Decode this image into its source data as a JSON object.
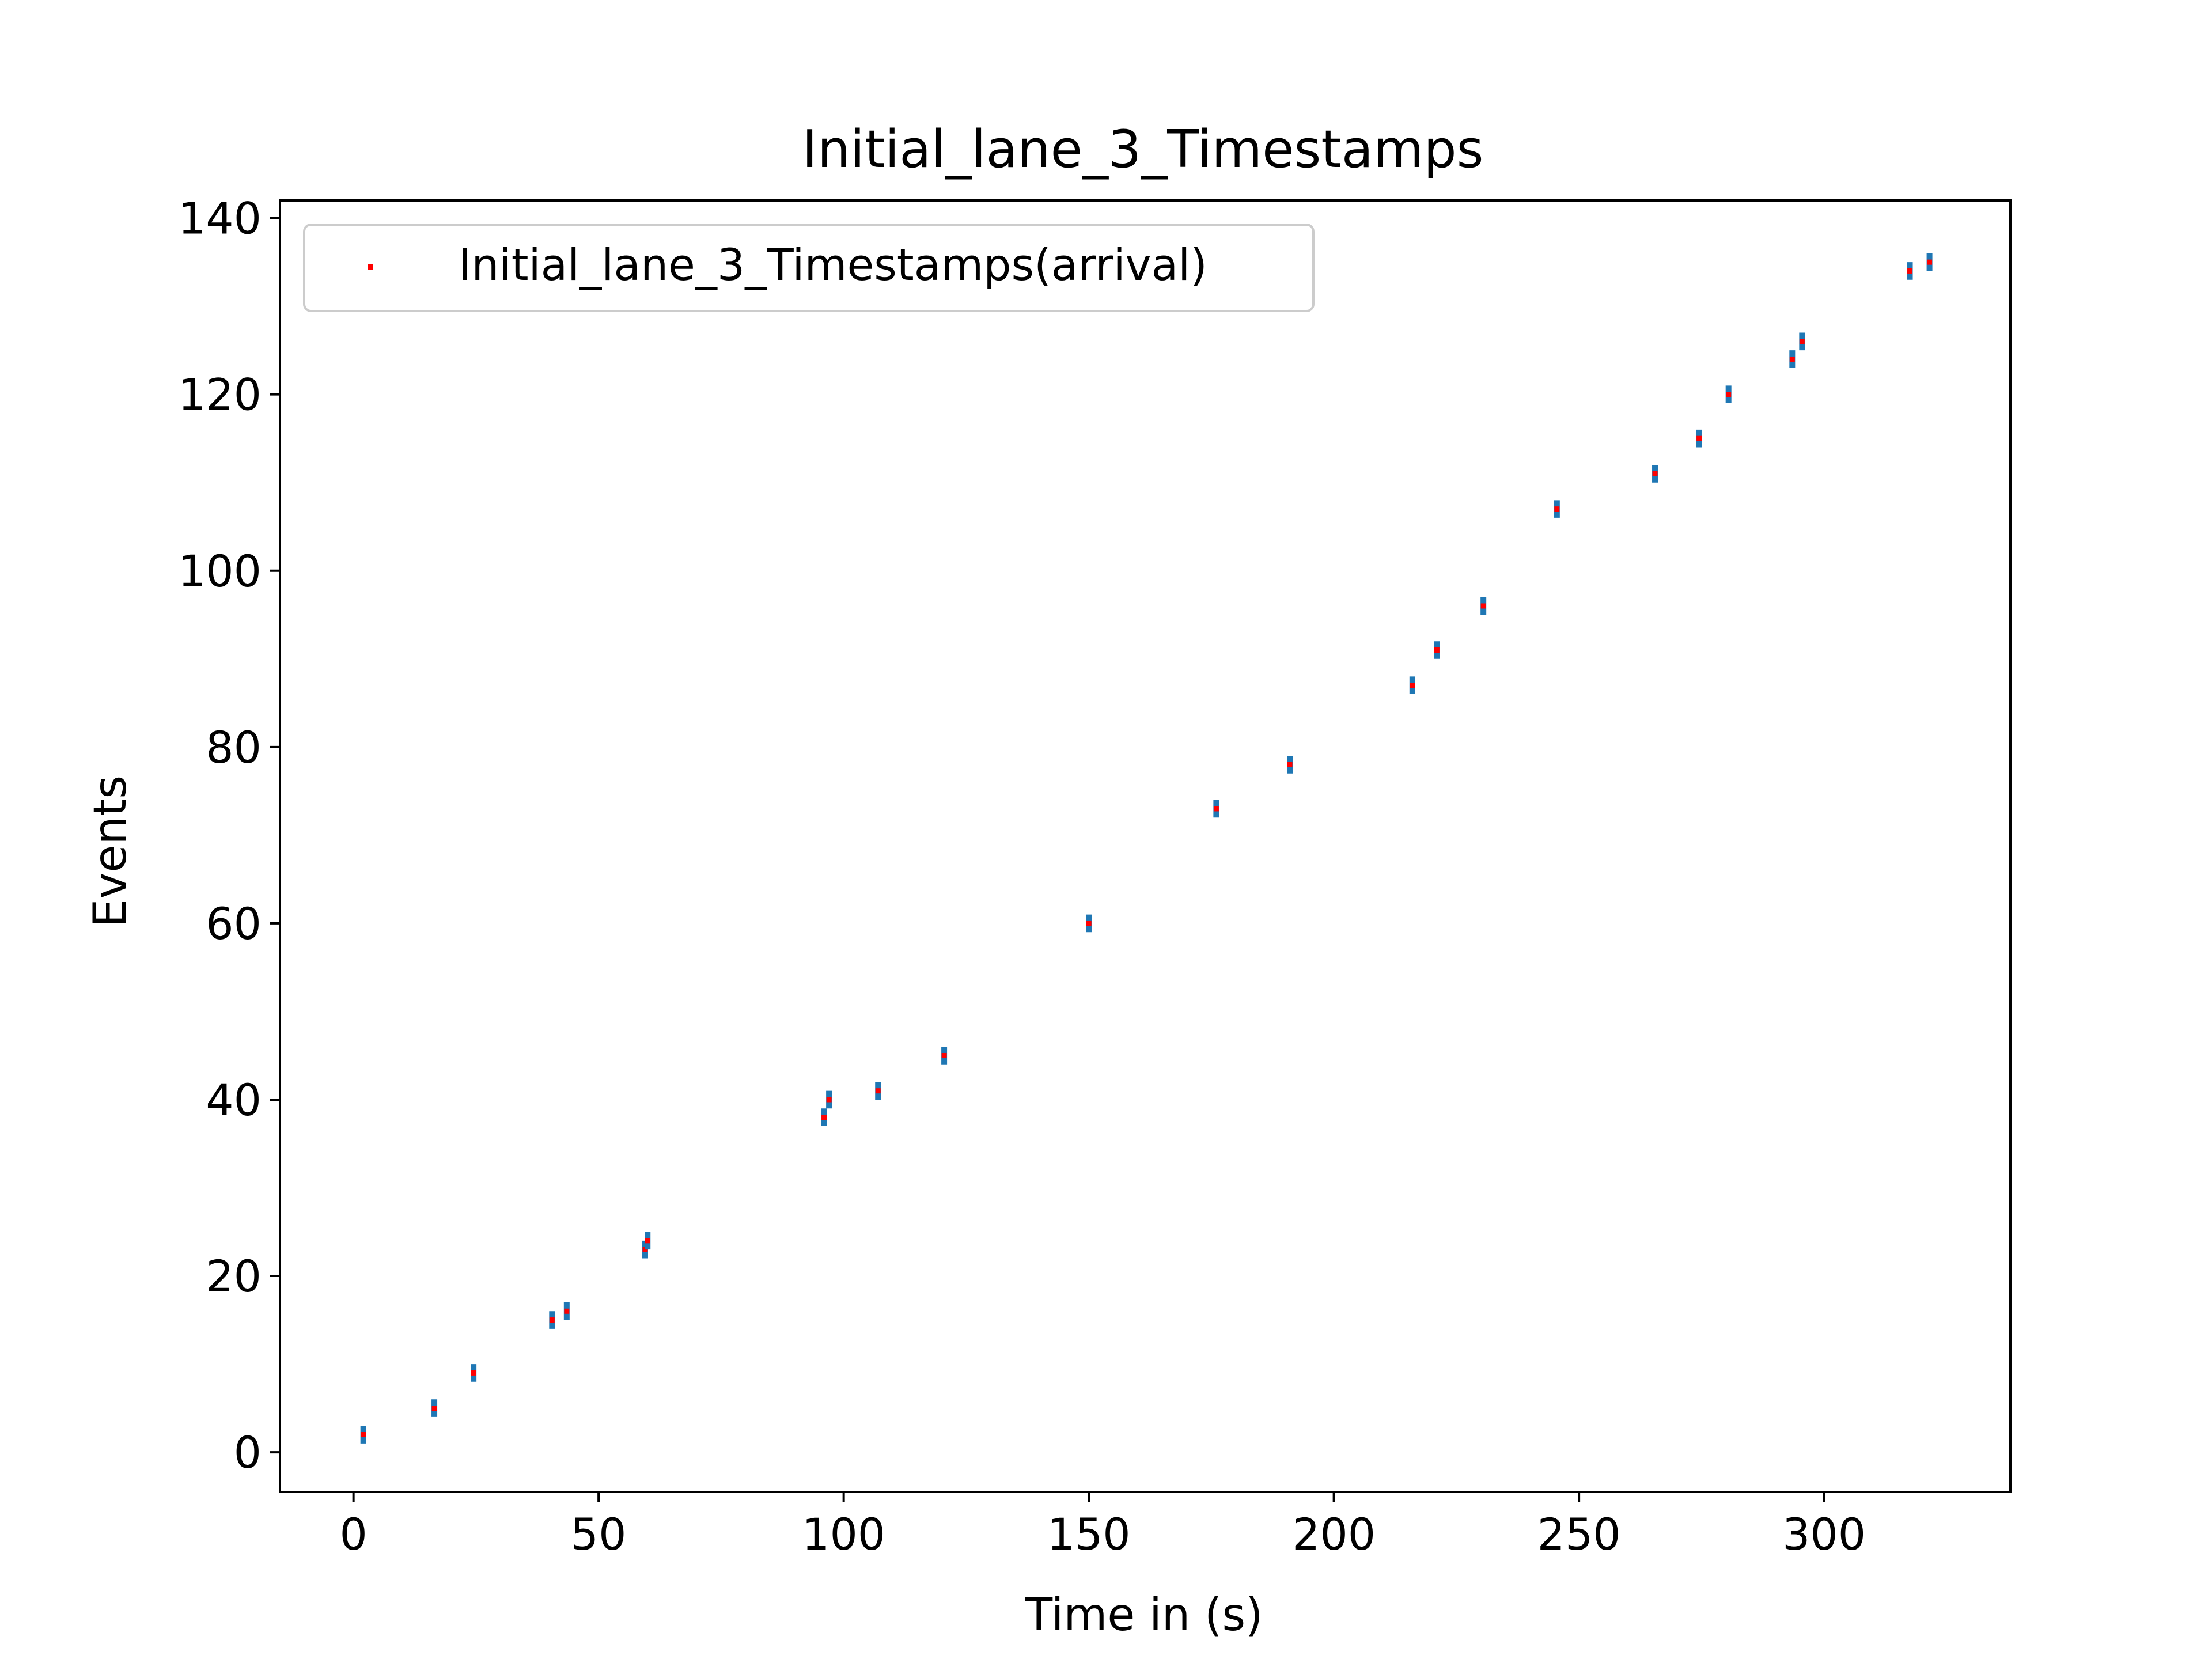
{
  "chart_data": {
    "type": "scatter",
    "title": "Initial_lane_3_Timestamps",
    "xlabel": "Time in (s)",
    "ylabel": "Events",
    "xlim": [
      -15,
      338
    ],
    "ylim": [
      -4.5,
      142
    ],
    "xticks": [
      0,
      50,
      100,
      150,
      200,
      250,
      300
    ],
    "yticks": [
      0,
      20,
      40,
      60,
      80,
      100,
      120,
      140
    ],
    "grid": false,
    "legend": {
      "placement": "top-left"
    },
    "series": [
      {
        "name": "Initial_lane_3_Timestamps(arrival)",
        "color": "#ff0000",
        "errorbar_color": "#1f77b4",
        "yerr": 1,
        "points": [
          {
            "x": 2,
            "y": 2
          },
          {
            "x": 16.5,
            "y": 5
          },
          {
            "x": 24.5,
            "y": 9
          },
          {
            "x": 40.5,
            "y": 15
          },
          {
            "x": 43.5,
            "y": 16
          },
          {
            "x": 59.5,
            "y": 23
          },
          {
            "x": 60,
            "y": 24
          },
          {
            "x": 96,
            "y": 38
          },
          {
            "x": 97,
            "y": 40
          },
          {
            "x": 107,
            "y": 41
          },
          {
            "x": 120.5,
            "y": 45
          },
          {
            "x": 150,
            "y": 60
          },
          {
            "x": 176,
            "y": 73
          },
          {
            "x": 191,
            "y": 78
          },
          {
            "x": 216,
            "y": 87
          },
          {
            "x": 221,
            "y": 91
          },
          {
            "x": 230.5,
            "y": 96
          },
          {
            "x": 245.5,
            "y": 107
          },
          {
            "x": 265.5,
            "y": 111
          },
          {
            "x": 274.5,
            "y": 115
          },
          {
            "x": 280.5,
            "y": 120
          },
          {
            "x": 293.5,
            "y": 124
          },
          {
            "x": 295.5,
            "y": 126
          },
          {
            "x": 317.5,
            "y": 134
          },
          {
            "x": 321.5,
            "y": 135
          }
        ]
      }
    ]
  }
}
